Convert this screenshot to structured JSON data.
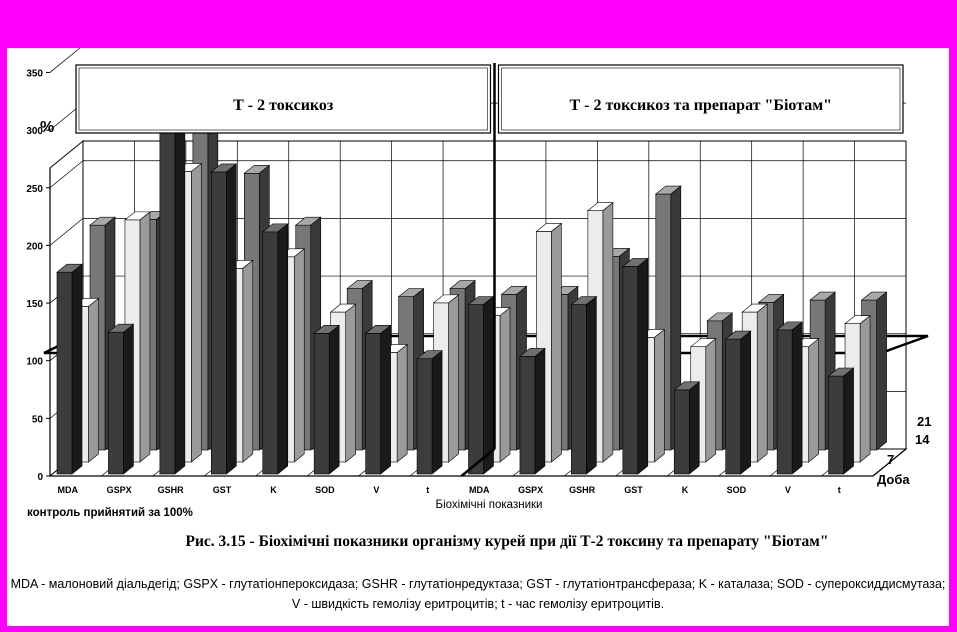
{
  "chart_data": {
    "type": "bar",
    "y_axis_label": "%",
    "x_axis_label": "Біохімічні показники",
    "depth_axis_label": "Доба",
    "ylim": [
      0,
      350
    ],
    "yticks": [
      0,
      50,
      100,
      150,
      200,
      250,
      300,
      350
    ],
    "control_note": "контроль прийнятий за 100%",
    "panels": [
      {
        "title": "Т - 2 токсикоз"
      },
      {
        "title": "Т - 2 токсикоз та препарат \"Біотам\""
      }
    ],
    "categories": [
      "MDA",
      "GSPX",
      "GSHR",
      "GST",
      "K",
      "SOD",
      "V",
      "t",
      "MDA",
      "GSPX",
      "GSHR",
      "GST",
      "K",
      "SOD",
      "V",
      "t"
    ],
    "series": [
      {
        "name": "7",
        "color": "#3c3c3c",
        "values": [
          175,
          123,
          325,
          262,
          210,
          122,
          122,
          100,
          147,
          102,
          147,
          180,
          73,
          117,
          125,
          85
        ]
      },
      {
        "name": "14",
        "color": "#e8e8e8",
        "values": [
          135,
          210,
          252,
          168,
          178,
          130,
          95,
          138,
          127,
          200,
          218,
          108,
          100,
          130,
          100,
          120
        ]
      },
      {
        "name": "21",
        "color": "#6e6e6e",
        "values": [
          195,
          200,
          300,
          240,
          195,
          140,
          133,
          140,
          135,
          135,
          168,
          222,
          112,
          128,
          130,
          130
        ]
      }
    ],
    "grid": true
  },
  "figure": {
    "title": "Рис. 3.15 -  Біохімічні показники організму курей при дії Т-2 токсину та препарату \"Біотам\"",
    "caption": "MDA - малоновий діальдегід; GSPX - глутатіонпероксидаза; GSHR - глутатіонредуктаза;  GST - глутатіонтрансфераза; K - каталаза;  SOD - супероксиддисмутаза;  V - швидкість гемолізу еритроцитів;  t - час гемолізу еритроцитів."
  }
}
